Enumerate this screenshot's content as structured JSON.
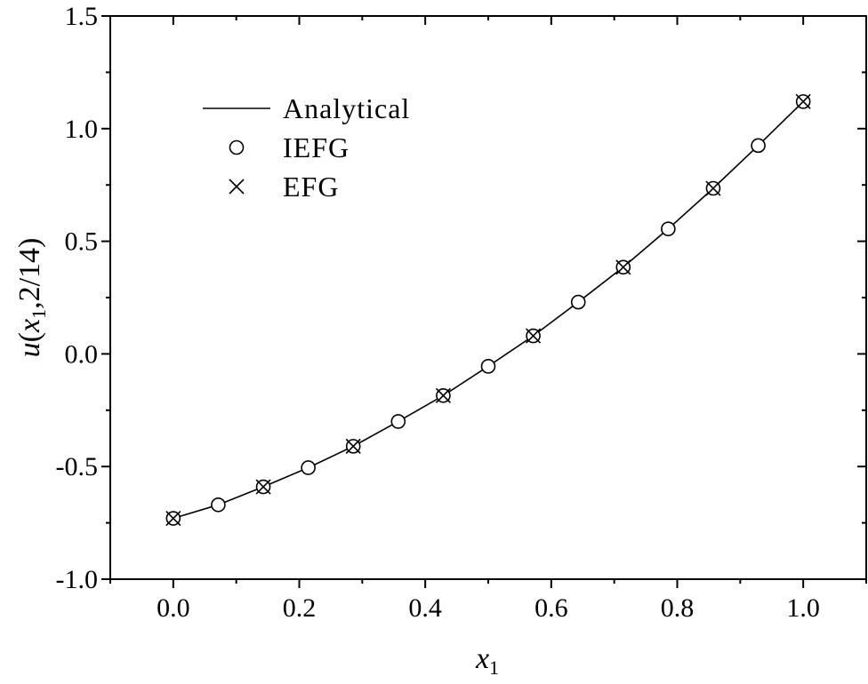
{
  "chart_data": {
    "type": "line",
    "xlabel": {
      "var": "x",
      "sub": "1"
    },
    "ylabel": {
      "pre": "u(",
      "var": "x",
      "sub": "1",
      "post": ",2/14)"
    },
    "xlim": [
      -0.1,
      1.1
    ],
    "ylim": [
      -1.0,
      1.5
    ],
    "xticks": [
      0.0,
      0.2,
      0.4,
      0.6,
      0.8,
      1.0
    ],
    "xtick_labels": [
      "0.0",
      "0.2",
      "0.4",
      "0.6",
      "0.8",
      "1.0"
    ],
    "yticks": [
      -1.0,
      -0.5,
      0.0,
      0.5,
      1.0,
      1.5
    ],
    "ytick_labels": [
      "-1.0",
      "-0.5",
      "0.0",
      "0.5",
      "1.0",
      "1.5"
    ],
    "grid": false,
    "legend_position": "top-left",
    "series": [
      {
        "name": "Analytical",
        "style": "line",
        "x": [
          0.0,
          0.0714,
          0.1429,
          0.2143,
          0.2857,
          0.3571,
          0.4286,
          0.5,
          0.5714,
          0.6429,
          0.7143,
          0.7857,
          0.8571,
          0.9286,
          1.0
        ],
        "y": [
          -0.73,
          -0.67,
          -0.59,
          -0.505,
          -0.41,
          -0.3,
          -0.185,
          -0.055,
          0.08,
          0.23,
          0.385,
          0.555,
          0.735,
          0.925,
          1.12
        ]
      },
      {
        "name": "IEFG",
        "style": "circle",
        "x": [
          0.0,
          0.0714,
          0.1429,
          0.2143,
          0.2857,
          0.3571,
          0.4286,
          0.5,
          0.5714,
          0.6429,
          0.7143,
          0.7857,
          0.8571,
          0.9286,
          1.0
        ],
        "y": [
          -0.73,
          -0.67,
          -0.59,
          -0.505,
          -0.41,
          -0.3,
          -0.185,
          -0.055,
          0.08,
          0.23,
          0.385,
          0.555,
          0.735,
          0.925,
          1.12
        ]
      },
      {
        "name": "EFG",
        "style": "cross",
        "x": [
          0.0,
          0.1429,
          0.2857,
          0.4286,
          0.5714,
          0.7143,
          0.8571,
          1.0
        ],
        "y": [
          -0.73,
          -0.59,
          -0.41,
          -0.185,
          0.08,
          0.385,
          0.735,
          1.12
        ]
      }
    ]
  }
}
